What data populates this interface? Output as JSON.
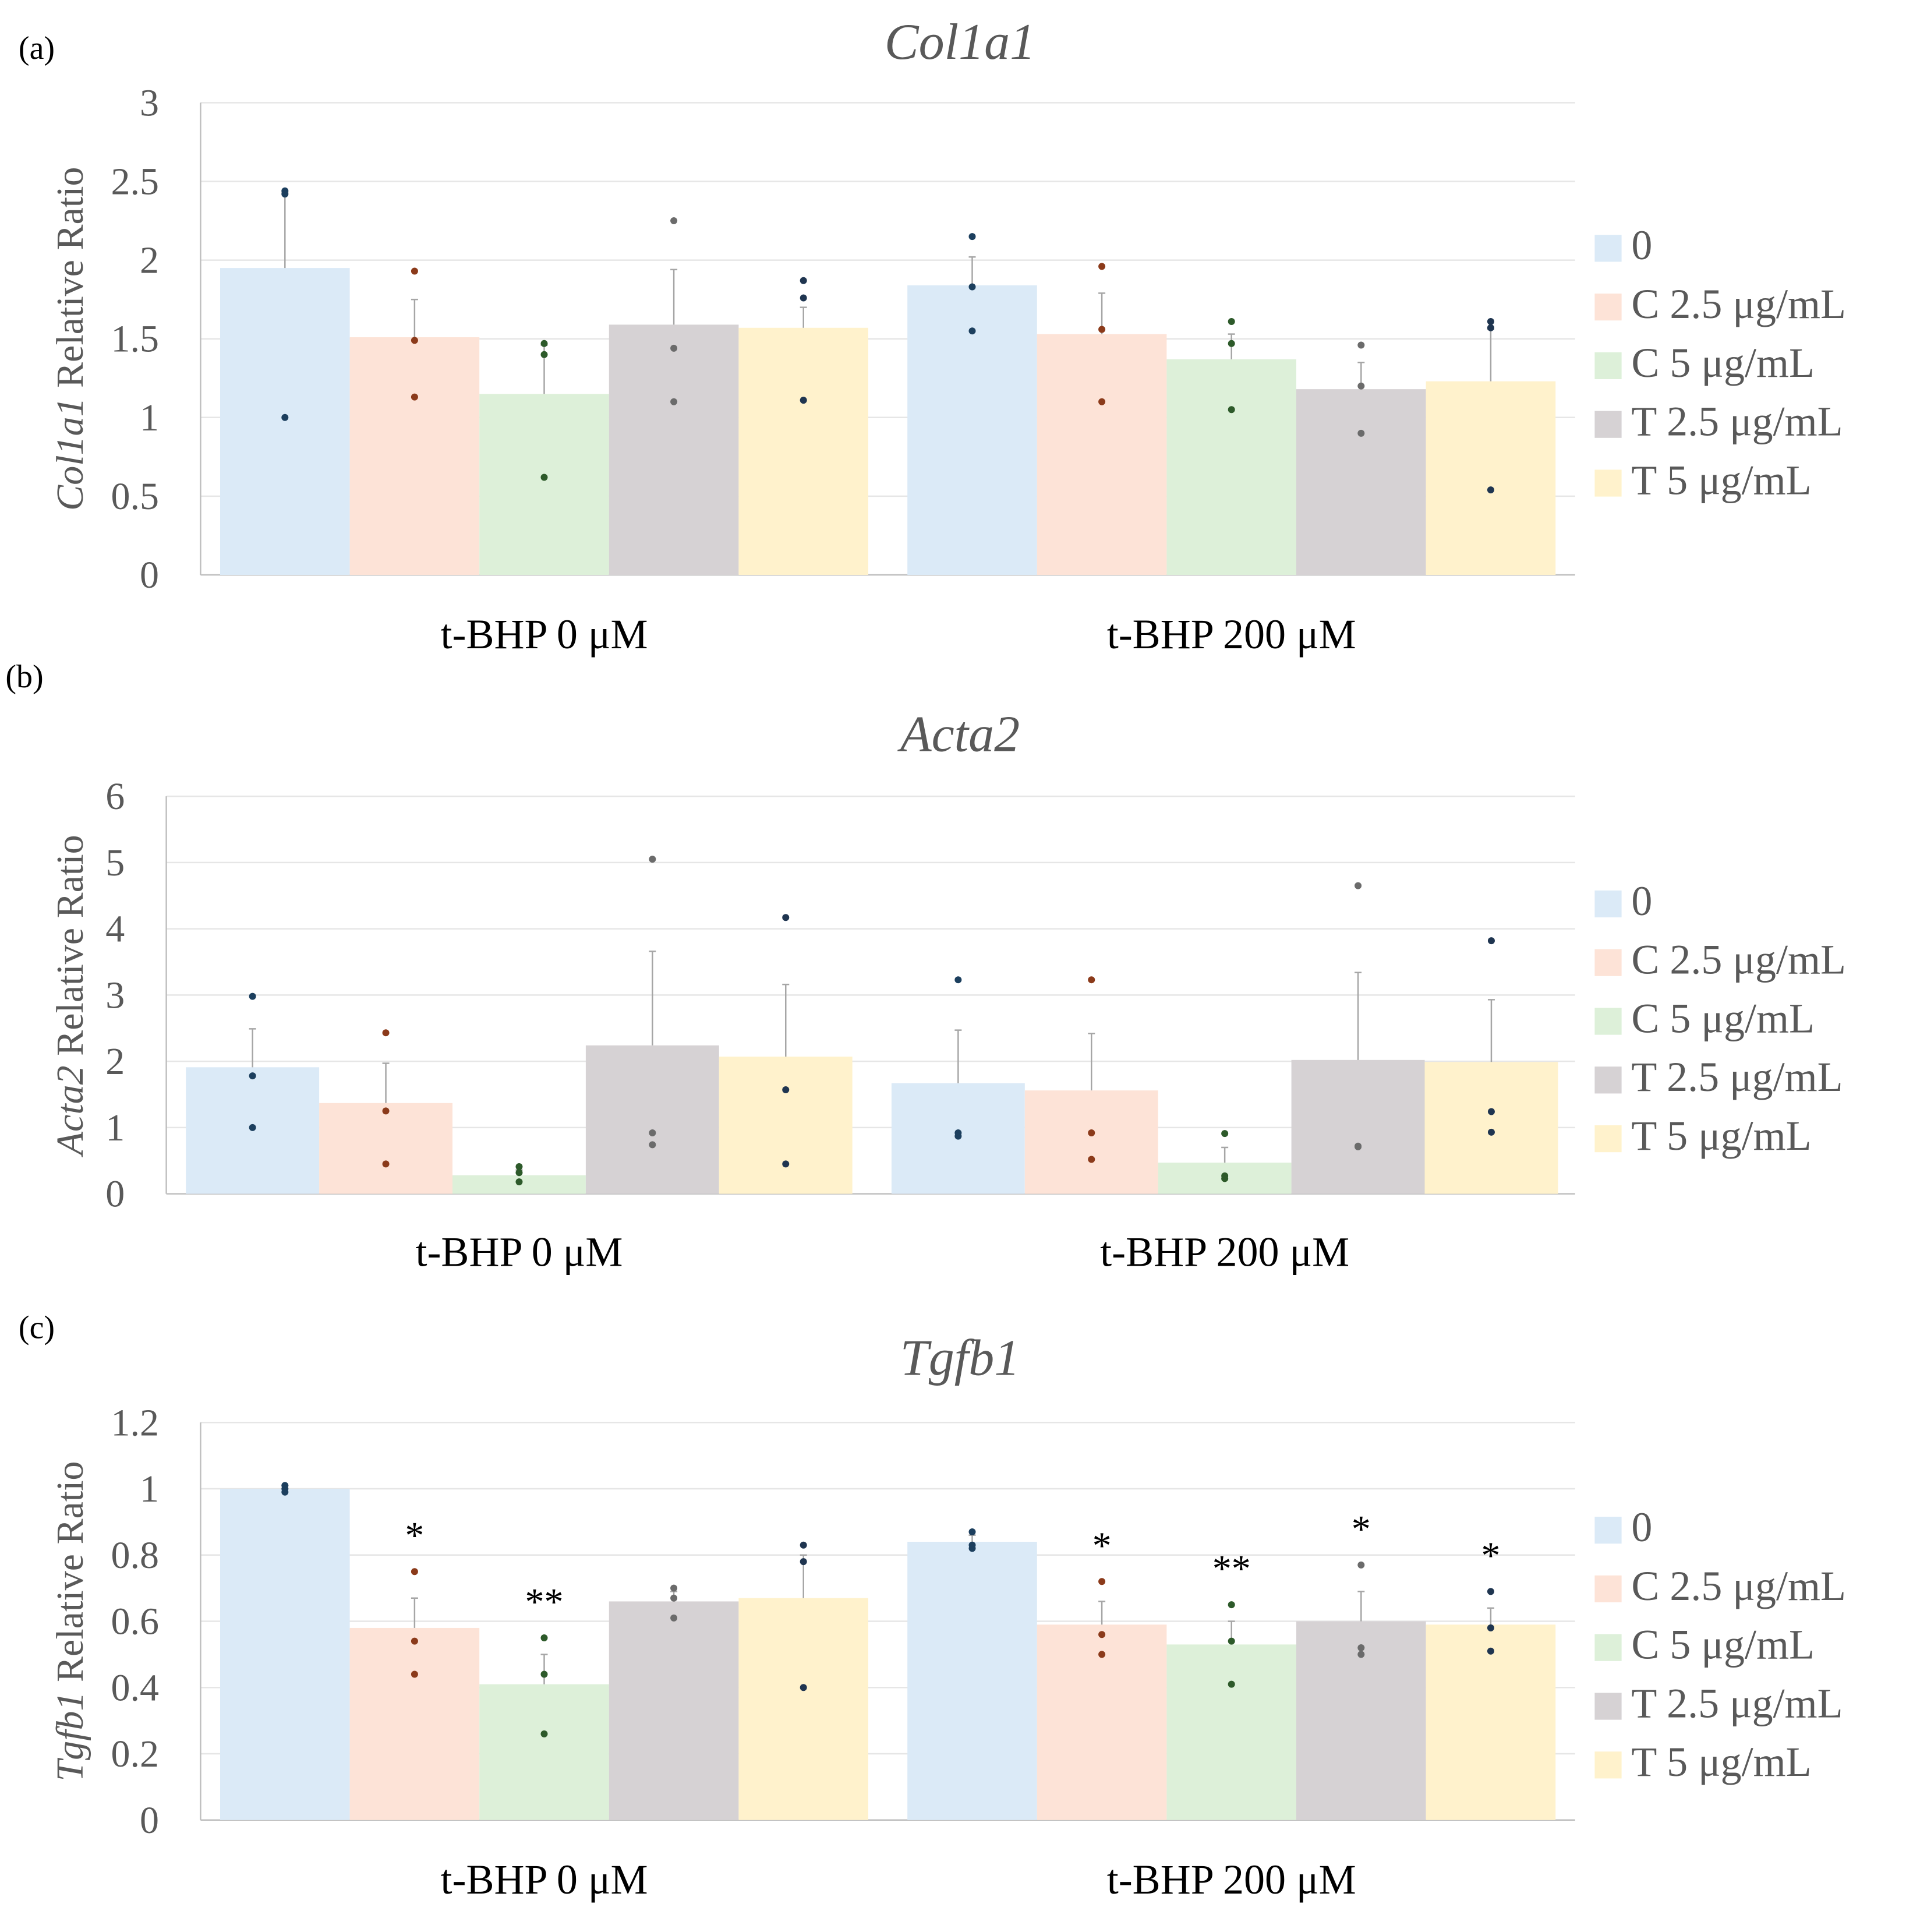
{
  "figure": {
    "groups": [
      "t-BHP 0 μM",
      "t-BHP 200 μM"
    ],
    "legend": [
      {
        "label": "0",
        "color": "#dbeaf7"
      },
      {
        "label": "C 2.5 μg/mL",
        "color": "#fde3d7"
      },
      {
        "label": "C 5 μg/mL",
        "color": "#ddf0d9"
      },
      {
        "label": "T 2.5 μg/mL",
        "color": "#d6d2d4"
      },
      {
        "label": "T 5 μg/mL",
        "color": "#fff2cc"
      }
    ],
    "dot_colors": [
      "#1c3f5e",
      "#8b3a1a",
      "#2d5a2a",
      "#6b6b6b",
      "#1f3550"
    ]
  },
  "chart_data": [
    {
      "panel_label": "(a)",
      "type": "bar",
      "title": "Col1a1",
      "ylabel_gene": "Col1a1",
      "ylabel_rest": " Relative Ratio",
      "ylim": [
        0,
        3
      ],
      "yticks": [
        "0",
        "0.5",
        "1",
        "1.5",
        "2",
        "2.5",
        "3"
      ],
      "ytick_values": [
        0,
        0.5,
        1,
        1.5,
        2,
        2.5,
        3
      ],
      "categories": [
        "t-BHP 0 μM",
        "t-BHP 200 μM"
      ],
      "series": [
        {
          "name": "0",
          "values": [
            1.95,
            1.84
          ],
          "err": [
            0.48,
            0.18
          ],
          "points": [
            [
              2.44,
              2.42,
              1.0
            ],
            [
              2.15,
              1.83,
              1.55
            ]
          ],
          "annot": [
            "",
            ""
          ]
        },
        {
          "name": "C 2.5 μg/mL",
          "values": [
            1.51,
            1.53
          ],
          "err": [
            0.24,
            0.26
          ],
          "points": [
            [
              1.93,
              1.49,
              1.13
            ],
            [
              1.96,
              1.56,
              1.1
            ]
          ],
          "annot": [
            "",
            ""
          ]
        },
        {
          "name": "C 5 μg/mL",
          "values": [
            1.15,
            1.37
          ],
          "err": [
            0.31,
            0.16
          ],
          "points": [
            [
              1.47,
              1.4,
              0.62
            ],
            [
              1.61,
              1.47,
              1.05
            ]
          ],
          "annot": [
            "",
            ""
          ]
        },
        {
          "name": "T 2.5 μg/mL",
          "values": [
            1.59,
            1.18
          ],
          "err": [
            0.35,
            0.17
          ],
          "points": [
            [
              2.25,
              1.44,
              1.1
            ],
            [
              1.46,
              1.2,
              0.9
            ]
          ],
          "annot": [
            "",
            ""
          ]
        },
        {
          "name": "T 5 μg/mL",
          "values": [
            1.57,
            1.23
          ],
          "err": [
            0.13,
            0.33
          ],
          "points": [
            [
              1.87,
              1.76,
              1.11
            ],
            [
              1.61,
              1.57,
              0.54
            ]
          ],
          "annot": [
            "",
            ""
          ]
        }
      ]
    },
    {
      "panel_label": "(b)",
      "type": "bar",
      "title": "Acta2",
      "ylabel_gene": "Acta2",
      "ylabel_rest": " Relative Ratio",
      "ylim": [
        0,
        6
      ],
      "yticks": [
        "0",
        "1",
        "2",
        "3",
        "4",
        "5",
        "6"
      ],
      "ytick_values": [
        0,
        1,
        2,
        3,
        4,
        5,
        6
      ],
      "categories": [
        "t-BHP 0 μM",
        "t-BHP 200 μM"
      ],
      "series": [
        {
          "name": "0",
          "values": [
            1.91,
            1.67
          ],
          "err": [
            0.58,
            0.8
          ],
          "points": [
            [
              2.98,
              1.78,
              1.0
            ],
            [
              3.23,
              0.92,
              0.87
            ]
          ],
          "annot": [
            "",
            ""
          ]
        },
        {
          "name": "C 2.5 μg/mL",
          "values": [
            1.37,
            1.56
          ],
          "err": [
            0.6,
            0.86
          ],
          "points": [
            [
              2.43,
              1.25,
              0.45
            ],
            [
              3.23,
              0.92,
              0.52
            ]
          ],
          "annot": [
            "",
            ""
          ]
        },
        {
          "name": "C 5 μg/mL",
          "values": [
            0.28,
            0.47
          ],
          "err": [
            0.08,
            0.23
          ],
          "points": [
            [
              0.41,
              0.32,
              0.18
            ],
            [
              0.91,
              0.27,
              0.23
            ]
          ],
          "annot": [
            "",
            ""
          ]
        },
        {
          "name": "T 2.5 μg/mL",
          "values": [
            2.24,
            2.02
          ],
          "err": [
            1.42,
            1.32
          ],
          "points": [
            [
              5.05,
              0.92,
              0.74
            ],
            [
              4.65,
              0.72,
              0.71
            ]
          ],
          "annot": [
            "",
            ""
          ]
        },
        {
          "name": "T 5 μg/mL",
          "values": [
            2.07,
            1.99
          ],
          "err": [
            1.09,
            0.94
          ],
          "points": [
            [
              4.17,
              1.57,
              0.45
            ],
            [
              3.82,
              1.24,
              0.93
            ]
          ],
          "annot": [
            "",
            ""
          ]
        }
      ]
    },
    {
      "panel_label": "(c)",
      "type": "bar",
      "title": "Tgfb1",
      "ylabel_gene": "Tgfb1",
      "ylabel_rest": " Relative Ratio",
      "ylim": [
        0,
        1.2
      ],
      "yticks": [
        "0",
        "0.2",
        "0.4",
        "0.6",
        "0.8",
        "1",
        "1.2"
      ],
      "ytick_values": [
        0,
        0.2,
        0.4,
        0.6,
        0.8,
        1,
        1.2
      ],
      "categories": [
        "t-BHP 0 μM",
        "t-BHP 200 μM"
      ],
      "series": [
        {
          "name": "0",
          "values": [
            1.0,
            0.84
          ],
          "err": [
            0.01,
            0.02
          ],
          "points": [
            [
              1.01,
              1.0,
              0.99
            ],
            [
              0.87,
              0.83,
              0.82
            ]
          ],
          "annot": [
            "",
            ""
          ]
        },
        {
          "name": "C 2.5 μg/mL",
          "values": [
            0.58,
            0.59
          ],
          "err": [
            0.09,
            0.07
          ],
          "points": [
            [
              0.75,
              0.54,
              0.44
            ],
            [
              0.72,
              0.56,
              0.5
            ]
          ],
          "annot": [
            "*",
            "*"
          ]
        },
        {
          "name": "C 5 μg/mL",
          "values": [
            0.41,
            0.53
          ],
          "err": [
            0.09,
            0.07
          ],
          "points": [
            [
              0.55,
              0.44,
              0.26
            ],
            [
              0.65,
              0.54,
              0.41
            ]
          ],
          "annot": [
            "**",
            "**"
          ]
        },
        {
          "name": "T 2.5 μg/mL",
          "values": [
            0.66,
            0.6
          ],
          "err": [
            0.03,
            0.09
          ],
          "points": [
            [
              0.7,
              0.67,
              0.61
            ],
            [
              0.77,
              0.52,
              0.5
            ]
          ],
          "annot": [
            "",
            "*"
          ]
        },
        {
          "name": "T 5 μg/mL",
          "values": [
            0.67,
            0.59
          ],
          "err": [
            0.13,
            0.05
          ],
          "points": [
            [
              0.83,
              0.78,
              0.4
            ],
            [
              0.69,
              0.58,
              0.51
            ]
          ],
          "annot": [
            "",
            "*"
          ]
        }
      ]
    }
  ]
}
